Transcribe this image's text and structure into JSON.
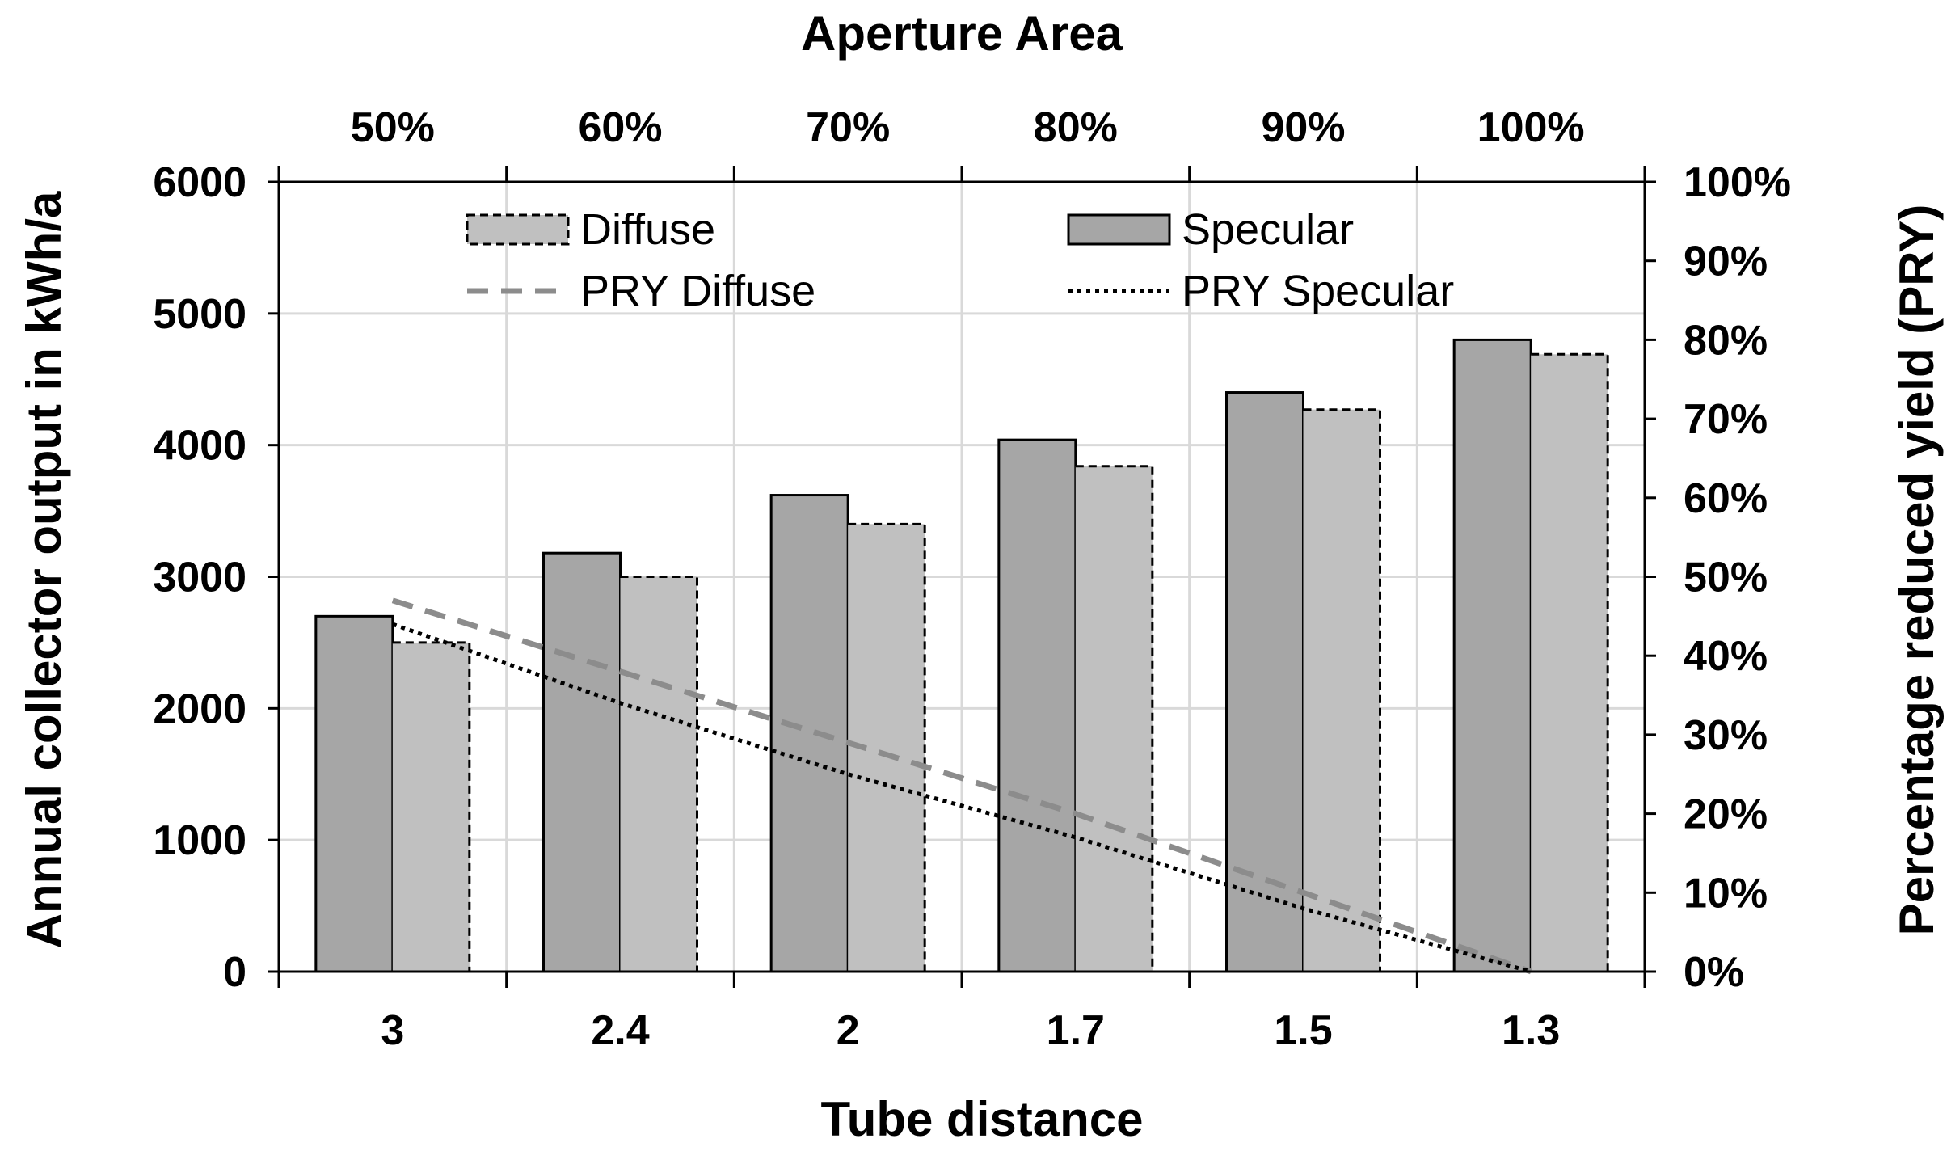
{
  "chart_data": {
    "type": "bar",
    "title": "",
    "top_axis_title": "Aperture Area",
    "top_labels": [
      "50%",
      "60%",
      "70%",
      "80%",
      "90%",
      "100%"
    ],
    "xlabel": "Tube distance",
    "categories": [
      "3",
      "2.4",
      "2",
      "1.7",
      "1.5",
      "1.3"
    ],
    "ylabel": "Annual collector output in kWh/a",
    "ylim": [
      0,
      6000
    ],
    "yticks": [
      "0",
      "1000",
      "2000",
      "3000",
      "4000",
      "5000",
      "6000"
    ],
    "y2label": "Percentage reduced yield (PRY)",
    "y2lim": [
      0,
      100
    ],
    "y2ticks": [
      "0%",
      "10%",
      "20%",
      "30%",
      "40%",
      "50%",
      "60%",
      "70%",
      "80%",
      "90%",
      "100%"
    ],
    "grid": true,
    "series": [
      {
        "name": "Specular",
        "kind": "bar",
        "axis": "left",
        "color": "#a6a6a6",
        "values": [
          2700,
          3180,
          3620,
          4040,
          4400,
          4800
        ]
      },
      {
        "name": "Diffuse",
        "kind": "bar",
        "axis": "left",
        "color": "#c0c0c0",
        "values": [
          2500,
          3000,
          3400,
          3840,
          4270,
          4690
        ]
      },
      {
        "name": "PRY Diffuse",
        "kind": "line",
        "axis": "right",
        "color": "#8c8c8c",
        "values": [
          47,
          38,
          29,
          20,
          10,
          0
        ]
      },
      {
        "name": "PRY Specular",
        "kind": "line",
        "axis": "right",
        "color": "#000000",
        "values": [
          44,
          34,
          25,
          17,
          8,
          0
        ]
      }
    ],
    "legend": {
      "position": "top",
      "entries": [
        "Diffuse",
        "Specular",
        "PRY Diffuse",
        "PRY Specular"
      ]
    }
  }
}
